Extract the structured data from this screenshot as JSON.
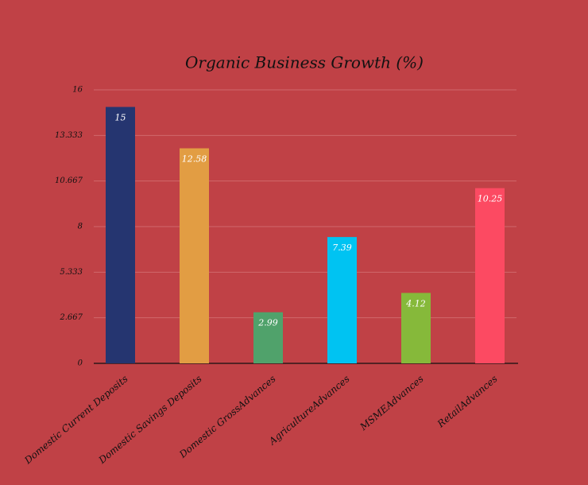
{
  "chart_data": {
    "type": "bar",
    "title": "Organic Business Growth (%)",
    "categories": [
      "Domestic Current Deposits",
      "Domestic Savings Deposits",
      "Domestic GrossAdvances",
      "AgricultureAdvances",
      "MSMEAdvances",
      "RetailAdvances"
    ],
    "values": [
      15,
      12.58,
      2.99,
      7.39,
      4.12,
      10.25
    ],
    "colors": [
      "#253570",
      "#e29d43",
      "#50a26b",
      "#00c3f2",
      "#86b93a",
      "#fc4a62"
    ],
    "ylim": [
      0,
      16
    ],
    "yticks": [
      0,
      2.667,
      5.333,
      8,
      10.667,
      13.333,
      16
    ],
    "grid": true
  }
}
